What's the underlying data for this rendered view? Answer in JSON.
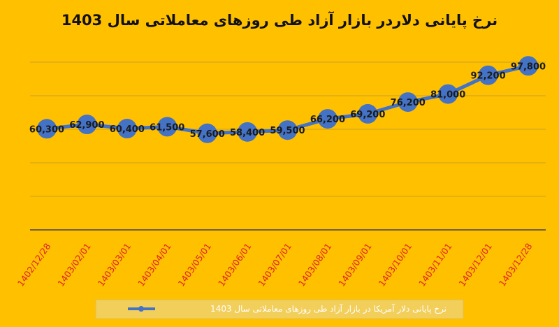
{
  "colors": {
    "background": "#FFC000",
    "line": "#4472C4",
    "marker": "#4472C4",
    "tick_label": "#E02020",
    "legend_box": "#F2CE5A",
    "axis": "#404040"
  },
  "chart_data": {
    "type": "line",
    "title": "نرخ پایانی دلاردر بازار آزاد طی روزهای معاملاتی سال 1403",
    "categories": [
      "1402/12/28",
      "1403/02/01",
      "1403/03/01",
      "1403/04/01",
      "1403/05/01",
      "1403/06/01",
      "1403/07/01",
      "1403/08/01",
      "1403/09/01",
      "1403/10/01",
      "1403/11/01",
      "1403/12/01",
      "1403/12/28"
    ],
    "series": [
      {
        "name": "نرخ پایانی دلار آمریکا در بازار آزاد طی روزهای معاملاتی سال 1403",
        "values": [
          60300,
          62900,
          60400,
          61500,
          57600,
          58400,
          59500,
          66200,
          69200,
          76200,
          81000,
          92200,
          97800
        ],
        "labels": [
          "60,300",
          "62,900",
          "60,400",
          "61,500",
          "57,600",
          "58,400",
          "59,500",
          "66,200",
          "69,200",
          "76,200",
          "81,000",
          "92,200",
          "97,800"
        ]
      }
    ],
    "ylim": [
      0,
      110000
    ],
    "grid": true,
    "legend_position": "bottom"
  }
}
